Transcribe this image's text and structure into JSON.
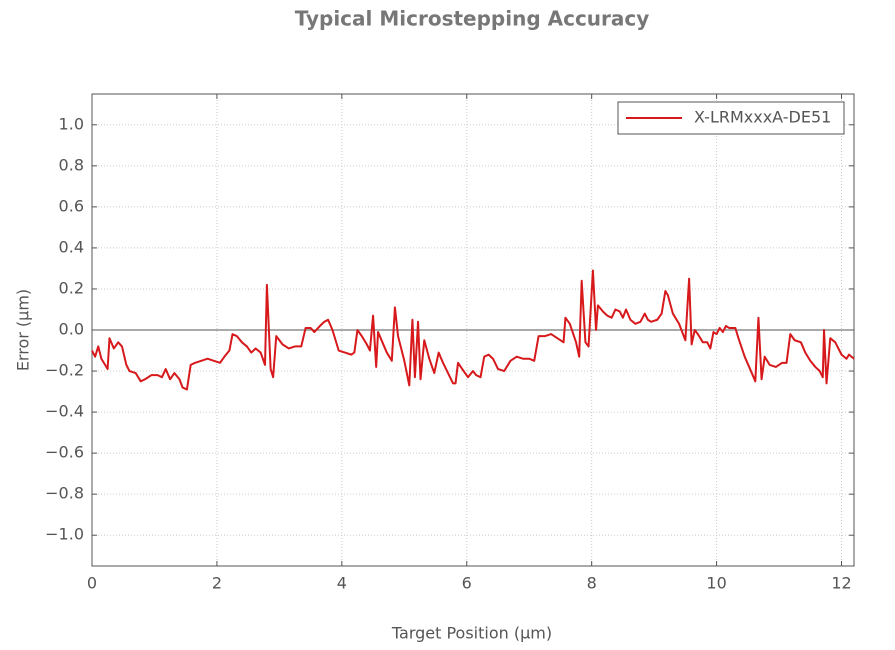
{
  "chart_data": {
    "type": "line",
    "title": "Typical Microstepping Accuracy",
    "x_label": "Target Position (μm)",
    "y_label": "Error (μm)",
    "x": [
      0,
      0.05,
      0.1,
      0.15,
      0.25,
      0.28,
      0.35,
      0.42,
      0.48,
      0.55,
      0.6,
      0.7,
      0.78,
      0.85,
      0.95,
      1.05,
      1.12,
      1.18,
      1.25,
      1.32,
      1.4,
      1.45,
      1.52,
      1.58,
      1.65,
      1.75,
      1.85,
      1.95,
      2.05,
      2.12,
      2.2,
      2.25,
      2.32,
      2.4,
      2.48,
      2.55,
      2.62,
      2.7,
      2.77,
      2.8,
      2.86,
      2.9,
      2.95,
      3.05,
      3.15,
      3.25,
      3.35,
      3.42,
      3.5,
      3.56,
      3.65,
      3.72,
      3.78,
      3.85,
      3.95,
      4.05,
      4.15,
      4.2,
      4.25,
      4.32,
      4.4,
      4.45,
      4.5,
      4.55,
      4.58,
      4.65,
      4.72,
      4.8,
      4.85,
      4.9,
      5.0,
      5.08,
      5.13,
      5.17,
      5.22,
      5.26,
      5.32,
      5.4,
      5.48,
      5.55,
      5.62,
      5.7,
      5.78,
      5.82,
      5.86,
      5.95,
      6.02,
      6.1,
      6.15,
      6.22,
      6.28,
      6.35,
      6.42,
      6.5,
      6.6,
      6.7,
      6.8,
      6.9,
      7.0,
      7.08,
      7.15,
      7.25,
      7.35,
      7.45,
      7.55,
      7.58,
      7.65,
      7.75,
      7.8,
      7.84,
      7.9,
      7.95,
      8.02,
      8.07,
      8.1,
      8.18,
      8.25,
      8.32,
      8.38,
      8.45,
      8.5,
      8.55,
      8.62,
      8.7,
      8.78,
      8.85,
      8.9,
      8.95,
      9.05,
      9.12,
      9.18,
      9.22,
      9.3,
      9.4,
      9.5,
      9.56,
      9.6,
      9.65,
      9.7,
      9.78,
      9.85,
      9.9,
      9.95,
      10.0,
      10.05,
      10.1,
      10.15,
      10.2,
      10.3,
      10.35,
      10.45,
      10.55,
      10.62,
      10.67,
      10.72,
      10.77,
      10.85,
      10.95,
      11.05,
      11.12,
      11.18,
      11.25,
      11.35,
      11.42,
      11.5,
      11.58,
      11.65,
      11.7,
      11.72,
      11.76,
      11.82,
      11.9,
      12.0,
      12.08,
      12.12,
      12.2
    ],
    "series": [
      {
        "name": "X-LRMxxxA-DE51",
        "color": "#d7191c",
        "values": [
          -0.1,
          -0.13,
          -0.08,
          -0.14,
          -0.19,
          -0.04,
          -0.09,
          -0.06,
          -0.08,
          -0.17,
          -0.2,
          -0.21,
          -0.25,
          -0.24,
          -0.22,
          -0.22,
          -0.23,
          -0.19,
          -0.24,
          -0.21,
          -0.24,
          -0.28,
          -0.29,
          -0.17,
          -0.16,
          -0.15,
          -0.14,
          -0.15,
          -0.16,
          -0.13,
          -0.1,
          -0.02,
          -0.03,
          -0.06,
          -0.08,
          -0.11,
          -0.09,
          -0.11,
          -0.17,
          0.22,
          -0.19,
          -0.23,
          -0.03,
          -0.07,
          -0.09,
          -0.08,
          -0.08,
          0.01,
          0.01,
          -0.01,
          0.02,
          0.04,
          0.05,
          0.0,
          -0.1,
          -0.11,
          -0.12,
          -0.11,
          0.0,
          -0.03,
          -0.07,
          -0.1,
          0.07,
          -0.18,
          -0.01,
          -0.06,
          -0.11,
          -0.15,
          0.11,
          -0.03,
          -0.15,
          -0.27,
          0.05,
          -0.23,
          0.04,
          -0.24,
          -0.05,
          -0.14,
          -0.21,
          -0.11,
          -0.16,
          -0.21,
          -0.26,
          -0.26,
          -0.16,
          -0.2,
          -0.23,
          -0.2,
          -0.22,
          -0.23,
          -0.13,
          -0.12,
          -0.14,
          -0.19,
          -0.2,
          -0.15,
          -0.13,
          -0.14,
          -0.14,
          -0.15,
          -0.03,
          -0.03,
          -0.02,
          -0.04,
          -0.06,
          0.06,
          0.03,
          -0.06,
          -0.13,
          0.24,
          -0.06,
          -0.08,
          0.29,
          0.0,
          0.12,
          0.09,
          0.07,
          0.06,
          0.1,
          0.09,
          0.06,
          0.1,
          0.05,
          0.03,
          0.04,
          0.08,
          0.05,
          0.04,
          0.05,
          0.08,
          0.19,
          0.17,
          0.08,
          0.03,
          -0.05,
          0.25,
          -0.07,
          0.0,
          -0.02,
          -0.06,
          -0.06,
          -0.09,
          -0.01,
          -0.02,
          0.01,
          -0.01,
          0.02,
          0.01,
          0.01,
          -0.04,
          -0.13,
          -0.2,
          -0.25,
          0.06,
          -0.24,
          -0.13,
          -0.17,
          -0.18,
          -0.16,
          -0.16,
          -0.02,
          -0.05,
          -0.06,
          -0.11,
          -0.15,
          -0.18,
          -0.2,
          -0.23,
          0.0,
          -0.26,
          -0.04,
          -0.06,
          -0.12,
          -0.14,
          -0.12,
          -0.14
        ]
      }
    ],
    "xlim": [
      0,
      12.2
    ],
    "xticks": [
      0,
      2,
      4,
      6,
      8,
      10,
      12
    ],
    "ylim": [
      -1.15,
      1.15
    ],
    "yticks": [
      {
        "value": -1.0,
        "label": "−1.0"
      },
      {
        "value": -0.8,
        "label": "−0.8"
      },
      {
        "value": -0.6,
        "label": "−0.6"
      },
      {
        "value": -0.4,
        "label": "−0.4"
      },
      {
        "value": -0.2,
        "label": "−0.2"
      },
      {
        "value": 0,
        "label": "0.0"
      },
      {
        "value": 0.2,
        "label": "0.2"
      },
      {
        "value": 0.4,
        "label": "0.4"
      },
      {
        "value": 0.6,
        "label": "0.6"
      },
      {
        "value": 0.8,
        "label": "0.8"
      },
      {
        "value": 1.0,
        "label": "1.0"
      }
    ],
    "grid": true,
    "legend": "upper right"
  }
}
